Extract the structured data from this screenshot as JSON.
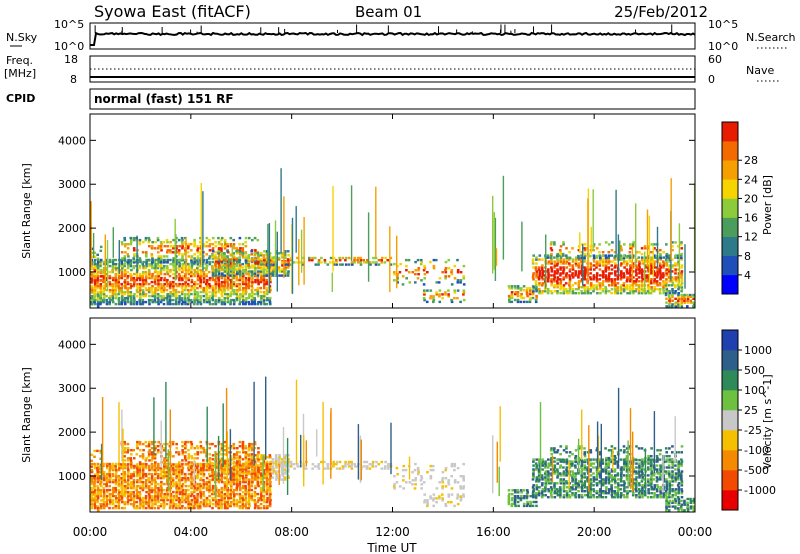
{
  "header": {
    "station": "Syowa East (fitACF)",
    "beam": "Beam 01",
    "date": "25/Feb/2012"
  },
  "nsky_panel": {
    "left_label": "N.Sky",
    "right_label": "N.Search",
    "left_ticks": [
      "10^5",
      "10^0"
    ],
    "right_ticks": [
      "10^5",
      "10^0"
    ]
  },
  "freq_panel": {
    "left_label_1": "Freq.",
    "left_label_2": "[MHz]",
    "right_label": "Nave",
    "left_ticks": [
      "18",
      "8"
    ],
    "right_ticks": [
      "60",
      "0"
    ]
  },
  "cpid": {
    "label": "CPID",
    "value": "normal (fast) 151 RF"
  },
  "chart_data": [
    {
      "type": "heatmap",
      "name_label": "Power",
      "xlabel": "",
      "ylabel": "Slant Range [km]",
      "ylim": [
        180,
        4600
      ],
      "yticks": [
        1000,
        2000,
        3000,
        4000
      ],
      "colorbar": {
        "label": "Power [dB]",
        "range": [
          0,
          32
        ],
        "ticks": [
          4,
          8,
          12,
          16,
          20,
          24,
          28
        ],
        "colors": [
          "#0000ff",
          "#1f4fb8",
          "#2f7a8a",
          "#4a9d5a",
          "#8ccc3a",
          "#f5d400",
          "#f5a000",
          "#f26a00",
          "#e81c00"
        ]
      }
    },
    {
      "type": "heatmap",
      "name_label": "Velocity",
      "xlabel": "Time UT",
      "ylabel": "Slant Range [km]",
      "ylim": [
        180,
        4600
      ],
      "yticks": [
        1000,
        2000,
        3000,
        4000
      ],
      "xticks": [
        "00:00",
        "04:00",
        "08:00",
        "12:00",
        "16:00",
        "20:00",
        "00:00"
      ],
      "colorbar": {
        "label": "Velocity [m s^-1]",
        "tick_labels": [
          "1000",
          "500",
          "100",
          "25",
          "-25",
          "-100",
          "-500",
          "-1000"
        ],
        "colors": [
          "#2040b0",
          "#2e5f8a",
          "#2f8a5a",
          "#6dc040",
          "#c8c8c8",
          "#f5c000",
          "#f58a00",
          "#f24a00",
          "#e80000"
        ]
      }
    }
  ]
}
